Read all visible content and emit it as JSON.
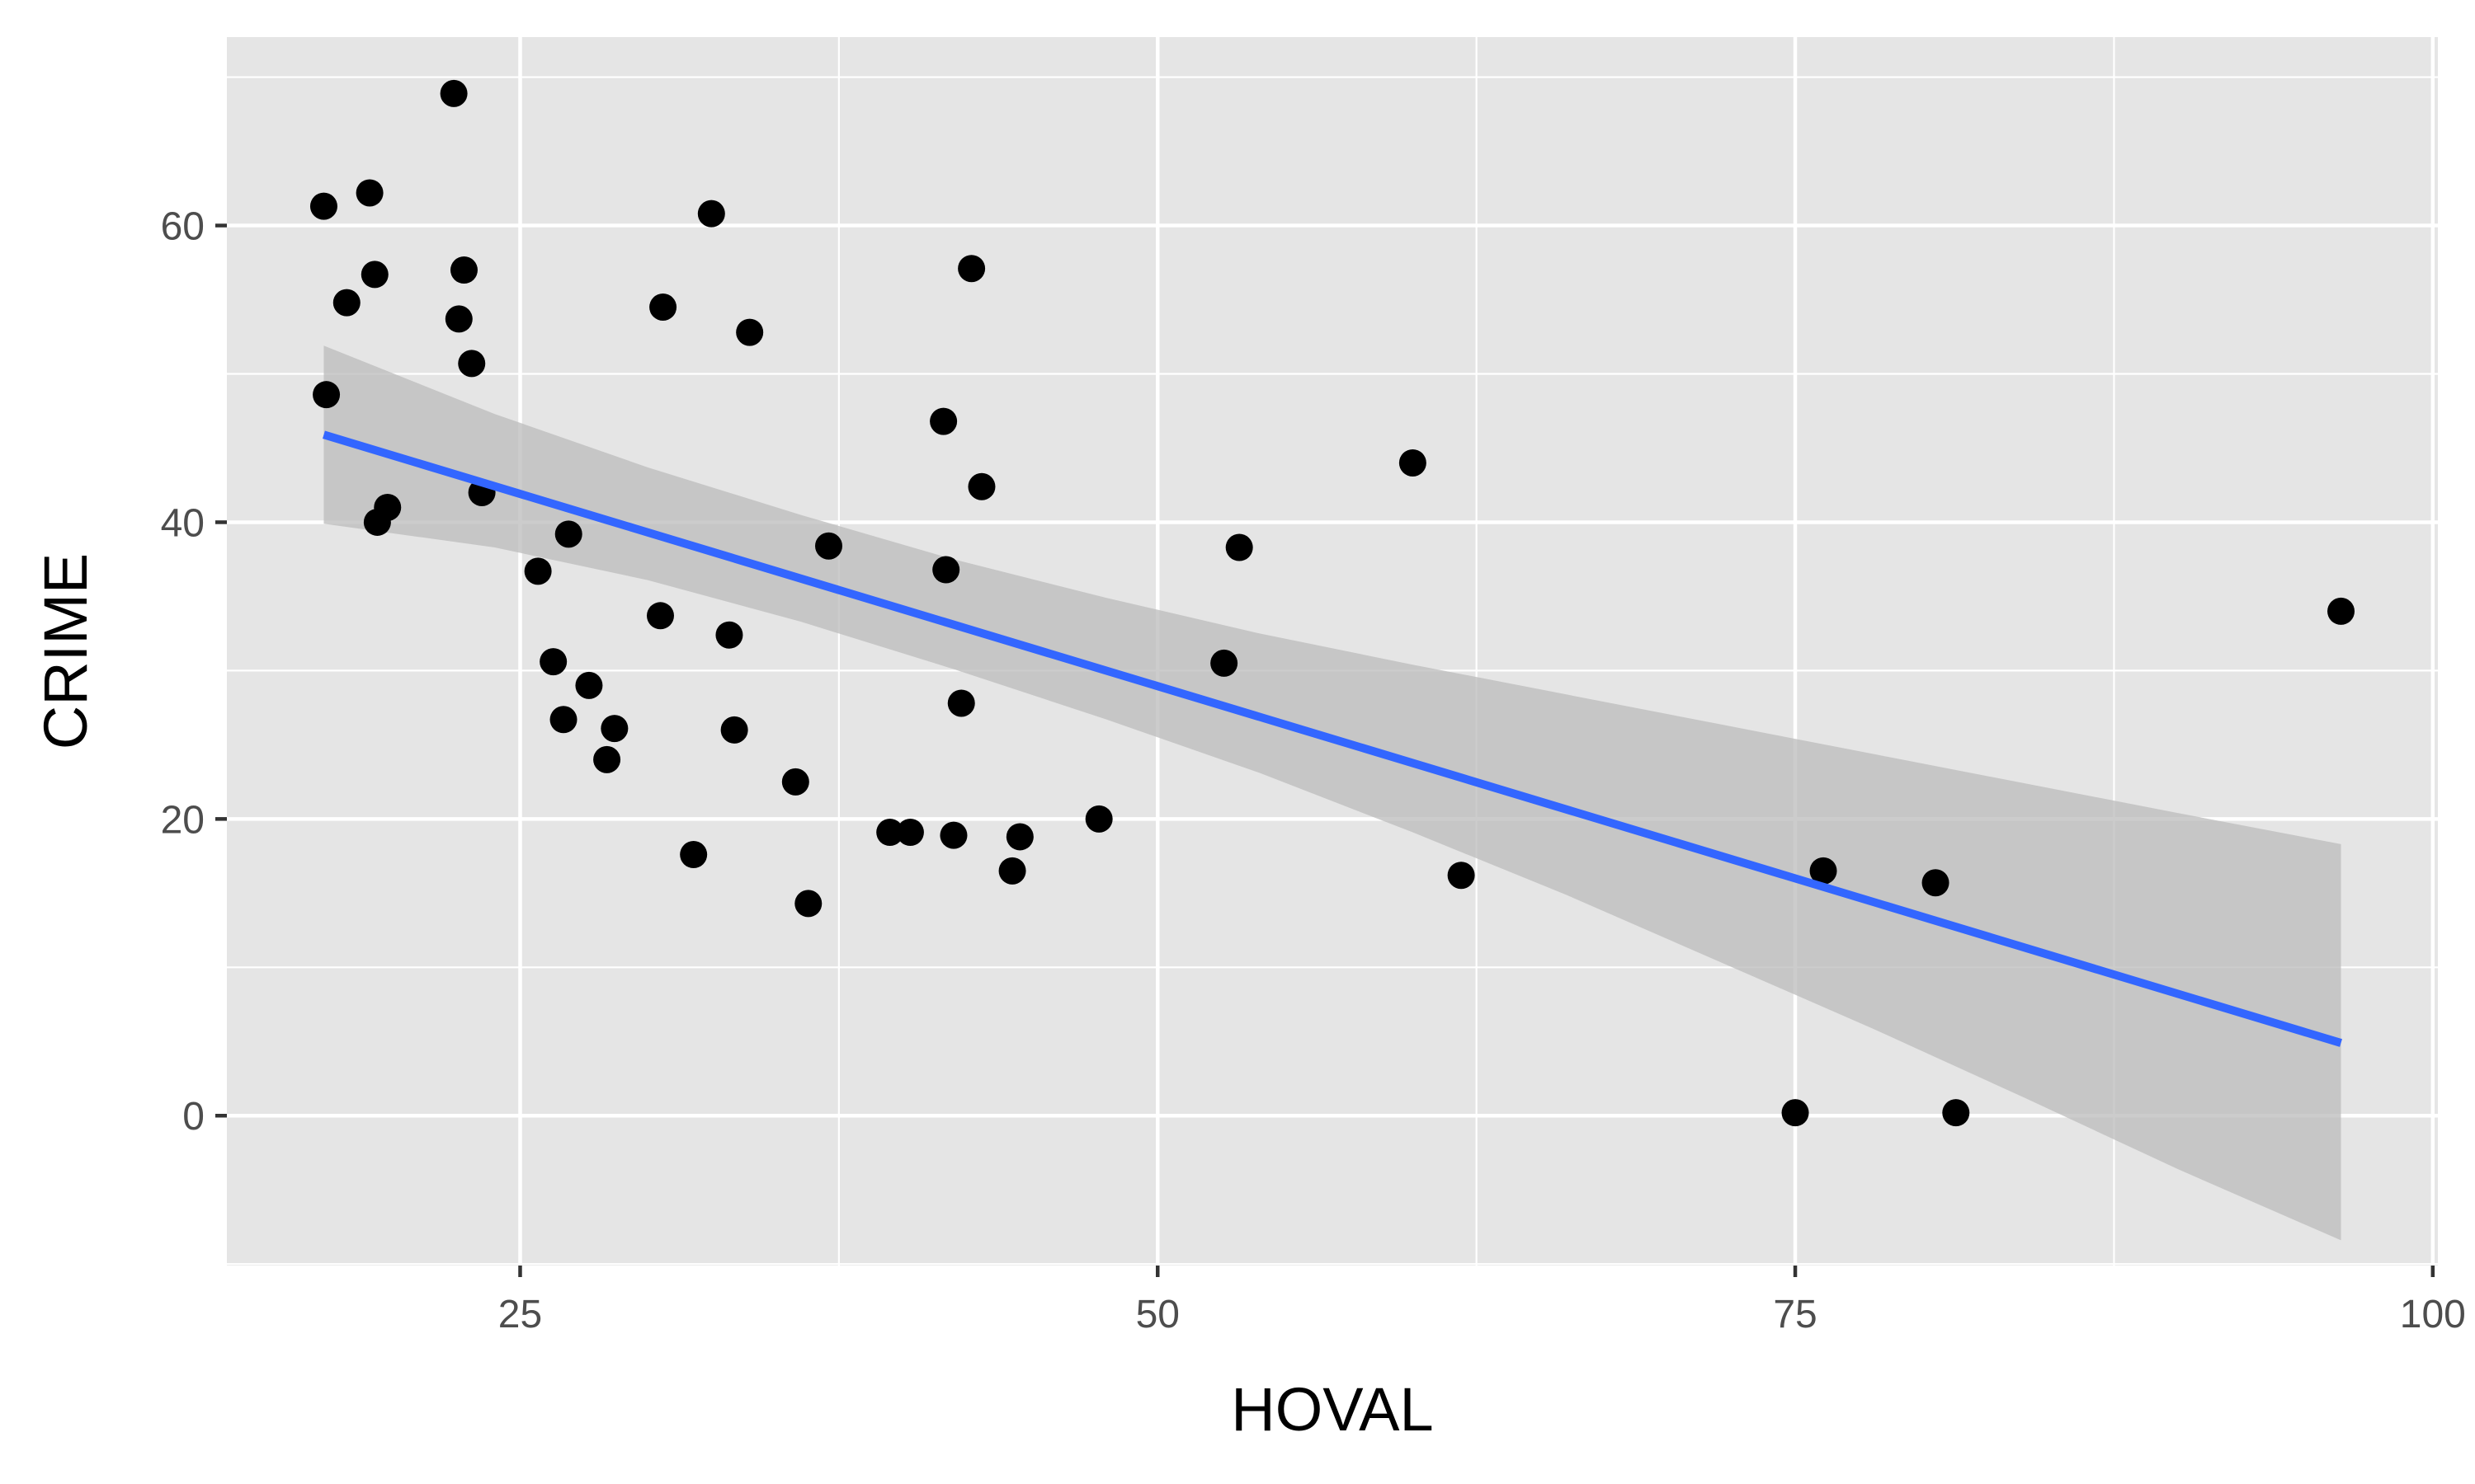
{
  "chart_data": {
    "type": "scatter",
    "title": "",
    "xlabel": "HOVAL",
    "ylabel": "CRIME",
    "xlim": [
      13.5,
      100.2
    ],
    "ylim": [
      -10.1,
      72.7
    ],
    "x_ticks": [
      25,
      50,
      75,
      100
    ],
    "x_tick_labels": [
      "25",
      "50",
      "75",
      "100"
    ],
    "y_ticks": [
      0,
      20,
      40,
      60
    ],
    "y_tick_labels": [
      "0",
      "20",
      "40",
      "60"
    ],
    "grid": true,
    "legend": "none",
    "colors": {
      "panel": "#e5e5e5",
      "grid": "#ffffff",
      "points": "#000000",
      "fit_line": "#3366ff",
      "ribbon": "#bebebe"
    },
    "points": [
      [
        17.3,
        61.3
      ],
      [
        17.4,
        48.6
      ],
      [
        18.2,
        54.8
      ],
      [
        19.1,
        62.2
      ],
      [
        19.3,
        56.7
      ],
      [
        19.4,
        40.0
      ],
      [
        19.8,
        41.0
      ],
      [
        22.4,
        68.9
      ],
      [
        22.6,
        53.7
      ],
      [
        22.8,
        57.0
      ],
      [
        23.1,
        50.7
      ],
      [
        23.5,
        42.0
      ],
      [
        25.7,
        36.7
      ],
      [
        26.3,
        30.6
      ],
      [
        26.7,
        26.7
      ],
      [
        26.9,
        39.2
      ],
      [
        27.7,
        29.0
      ],
      [
        28.4,
        24.0
      ],
      [
        28.7,
        26.1
      ],
      [
        30.5,
        33.7
      ],
      [
        30.6,
        54.5
      ],
      [
        31.8,
        17.6
      ],
      [
        32.5,
        60.8
      ],
      [
        33.2,
        32.4
      ],
      [
        33.4,
        26.0
      ],
      [
        34.0,
        52.8
      ],
      [
        35.8,
        22.5
      ],
      [
        36.3,
        14.3
      ],
      [
        37.1,
        38.4
      ],
      [
        39.5,
        19.1
      ],
      [
        40.3,
        19.1
      ],
      [
        41.6,
        46.8
      ],
      [
        41.7,
        36.8
      ],
      [
        42.0,
        18.9
      ],
      [
        42.3,
        27.8
      ],
      [
        42.7,
        57.1
      ],
      [
        43.1,
        42.4
      ],
      [
        44.3,
        16.5
      ],
      [
        44.6,
        18.8
      ],
      [
        47.7,
        20.0
      ],
      [
        52.6,
        30.5
      ],
      [
        53.2,
        38.3
      ],
      [
        60.0,
        44.0
      ],
      [
        61.9,
        16.2
      ],
      [
        75.0,
        0.2
      ],
      [
        76.1,
        16.5
      ],
      [
        80.5,
        15.7
      ],
      [
        81.3,
        0.2
      ],
      [
        96.4,
        34.0
      ]
    ],
    "fit": {
      "method": "linear",
      "x": [
        17.3,
        96.4
      ],
      "y": [
        45.9,
        4.9
      ]
    },
    "confidence_band": {
      "x": [
        17.3,
        24,
        30,
        36,
        42,
        48,
        54,
        60,
        66,
        72,
        78,
        84,
        90,
        96.4
      ],
      "upper": [
        51.9,
        47.3,
        43.7,
        40.5,
        37.5,
        34.9,
        32.5,
        30.4,
        28.4,
        26.4,
        24.4,
        22.4,
        20.4,
        18.3
      ],
      "lower": [
        39.9,
        38.3,
        36.1,
        33.3,
        30.1,
        26.7,
        23.1,
        19.1,
        14.9,
        10.4,
        5.9,
        1.2,
        -3.6,
        -8.4
      ]
    }
  }
}
